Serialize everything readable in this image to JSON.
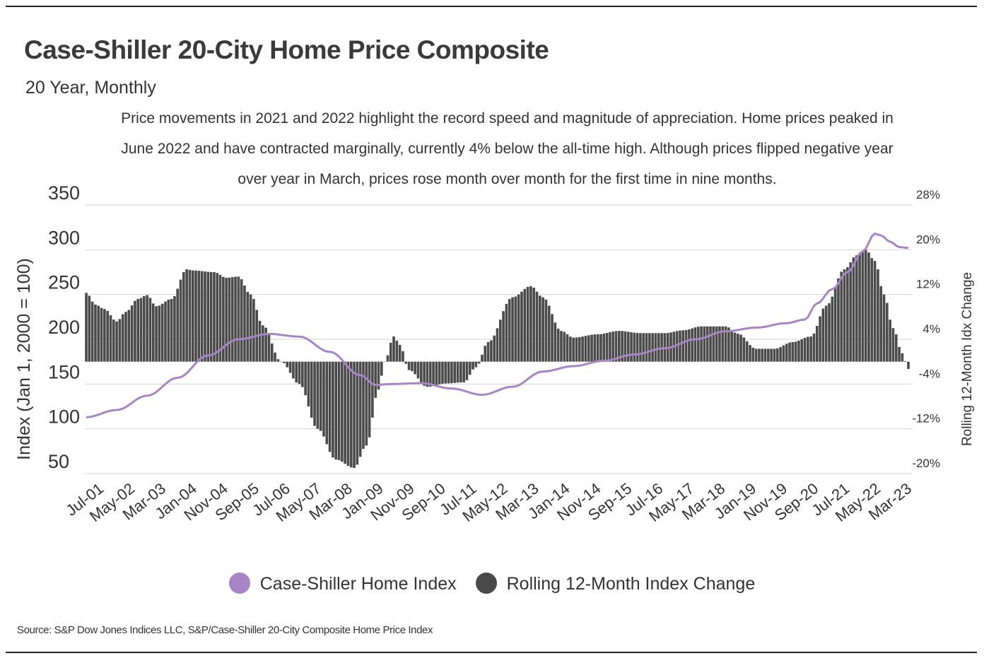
{
  "header": {
    "title": "Case-Shiller 20-City Home Price Composite",
    "subtitle": "20 Year, Monthly",
    "description": "Price movements in 2021 and 2022 highlight the record speed and magnitude of appreciation. Home prices peaked in June 2022 and have contracted marginally, currently 4% below the all-time high. Although prices flipped negative year over year in March, prices rose month over month for the first time in nine months."
  },
  "legend": {
    "index_label": "Case-Shiller Home Index",
    "change_label": "Rolling 12-Month Index Change"
  },
  "source": "Source:  S&P Dow Jones Indices LLC, S&P/Case-Shiller 20-City Composite Home Price Index",
  "colors": {
    "index_line": "#a886c6",
    "change_bars": "#4a4a4a",
    "gridline": "#d4d4d4",
    "text": "#333333"
  },
  "chart_data": {
    "type": "bar+line",
    "title": "Case-Shiller 20-City Home Price Composite",
    "ylabel": "Index (Jan 1, 2000 = 100)",
    "y2label": "Rolling 12-Month Idx Change",
    "ylim": [
      50,
      350
    ],
    "y_ticks": [
      "350",
      "300",
      "250",
      "200",
      "150",
      "100",
      "50"
    ],
    "y2lim": [
      -20,
      28
    ],
    "y2_ticks": [
      "28%",
      "20%",
      "12%",
      "4%",
      "-4%",
      "-12%",
      "-20%"
    ],
    "x_ticks": [
      "Jul-01",
      "May-02",
      "Mar-03",
      "Jan-04",
      "Nov-04",
      "Sep-05",
      "Jul-06",
      "May-07",
      "Mar-08",
      "Jan-09",
      "Nov-09",
      "Sep-10",
      "Jul-11",
      "May-12",
      "Mar-13",
      "Jan-14",
      "Nov-14",
      "Sep-15",
      "Jul-16",
      "May-17",
      "Mar-18",
      "Jan-19",
      "Nov-19",
      "Sep-20",
      "Jul-21",
      "May-22",
      "Mar-23"
    ],
    "x_range": [
      "Jul-01",
      "Mar-23"
    ],
    "series": [
      {
        "name": "Case-Shiller Home Index",
        "type": "line",
        "axis": "left",
        "anchors": [
          {
            "month": 0,
            "value": 113
          },
          {
            "month": 10,
            "value": 121
          },
          {
            "month": 20,
            "value": 137
          },
          {
            "month": 30,
            "value": 157
          },
          {
            "month": 40,
            "value": 182
          },
          {
            "month": 50,
            "value": 200
          },
          {
            "month": 60,
            "value": 206
          },
          {
            "month": 70,
            "value": 203
          },
          {
            "month": 80,
            "value": 186
          },
          {
            "month": 90,
            "value": 160
          },
          {
            "month": 95,
            "value": 149
          },
          {
            "month": 100,
            "value": 150
          },
          {
            "month": 110,
            "value": 151
          },
          {
            "month": 120,
            "value": 145
          },
          {
            "month": 130,
            "value": 138
          },
          {
            "month": 140,
            "value": 147
          },
          {
            "month": 150,
            "value": 164
          },
          {
            "month": 160,
            "value": 170
          },
          {
            "month": 170,
            "value": 176
          },
          {
            "month": 180,
            "value": 183
          },
          {
            "month": 190,
            "value": 190
          },
          {
            "month": 200,
            "value": 200
          },
          {
            "month": 210,
            "value": 209
          },
          {
            "month": 220,
            "value": 213
          },
          {
            "month": 230,
            "value": 218
          },
          {
            "month": 236,
            "value": 222
          },
          {
            "month": 240,
            "value": 240
          },
          {
            "month": 245,
            "value": 256
          },
          {
            "month": 250,
            "value": 275
          },
          {
            "month": 255,
            "value": 298
          },
          {
            "month": 259,
            "value": 318
          },
          {
            "month": 261,
            "value": 316
          },
          {
            "month": 264,
            "value": 309
          },
          {
            "month": 267,
            "value": 303
          },
          {
            "month": 270,
            "value": 302
          }
        ]
      },
      {
        "name": "Rolling 12-Month Index Change",
        "type": "bar",
        "axis": "right",
        "unit": "%",
        "anchors": [
          {
            "month": 0,
            "value": 12.3
          },
          {
            "month": 3,
            "value": 10.2
          },
          {
            "month": 6,
            "value": 9.4
          },
          {
            "month": 10,
            "value": 7.2
          },
          {
            "month": 13,
            "value": 8.9
          },
          {
            "month": 17,
            "value": 11.2
          },
          {
            "month": 20,
            "value": 11.9
          },
          {
            "month": 23,
            "value": 9.9
          },
          {
            "month": 28,
            "value": 11.2
          },
          {
            "month": 33,
            "value": 16.5
          },
          {
            "month": 35,
            "value": 16.3
          },
          {
            "month": 42,
            "value": 16.0
          },
          {
            "month": 46,
            "value": 15.0
          },
          {
            "month": 50,
            "value": 15.2
          },
          {
            "month": 54,
            "value": 12.0
          },
          {
            "month": 58,
            "value": 6.5
          },
          {
            "month": 64,
            "value": 0.0
          },
          {
            "month": 70,
            "value": -4.0
          },
          {
            "month": 76,
            "value": -12.0
          },
          {
            "month": 82,
            "value": -17.5
          },
          {
            "month": 88,
            "value": -19.0
          },
          {
            "month": 92,
            "value": -15.0
          },
          {
            "month": 96,
            "value": -5.0
          },
          {
            "month": 98,
            "value": 0.0
          },
          {
            "month": 101,
            "value": 4.5
          },
          {
            "month": 103,
            "value": 3.0
          },
          {
            "month": 106,
            "value": -1.5
          },
          {
            "month": 112,
            "value": -4.5
          },
          {
            "month": 118,
            "value": -3.9
          },
          {
            "month": 124,
            "value": -3.7
          },
          {
            "month": 128,
            "value": -1.0
          },
          {
            "month": 132,
            "value": 3.5
          },
          {
            "month": 140,
            "value": 11.5
          },
          {
            "month": 146,
            "value": 13.5
          },
          {
            "month": 150,
            "value": 11.5
          },
          {
            "month": 156,
            "value": 5.5
          },
          {
            "month": 160,
            "value": 4.3
          },
          {
            "month": 168,
            "value": 4.9
          },
          {
            "month": 175,
            "value": 5.5
          },
          {
            "month": 182,
            "value": 5.1
          },
          {
            "month": 190,
            "value": 5.1
          },
          {
            "month": 196,
            "value": 5.6
          },
          {
            "month": 202,
            "value": 6.3
          },
          {
            "month": 210,
            "value": 6.3
          },
          {
            "month": 214,
            "value": 5.0
          },
          {
            "month": 220,
            "value": 2.3
          },
          {
            "month": 226,
            "value": 2.3
          },
          {
            "month": 232,
            "value": 3.5
          },
          {
            "month": 238,
            "value": 4.5
          },
          {
            "month": 243,
            "value": 10.0
          },
          {
            "month": 249,
            "value": 16.5
          },
          {
            "month": 253,
            "value": 19.0
          },
          {
            "month": 256,
            "value": 20.0
          },
          {
            "month": 259,
            "value": 18.0
          },
          {
            "month": 262,
            "value": 12.0
          },
          {
            "month": 265,
            "value": 6.0
          },
          {
            "month": 268,
            "value": 1.5
          },
          {
            "month": 270,
            "value": -1.3
          }
        ]
      }
    ]
  }
}
